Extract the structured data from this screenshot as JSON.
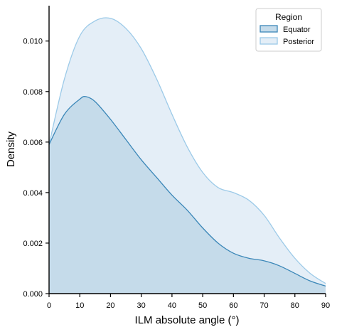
{
  "chart_data": {
    "type": "area",
    "xlabel": "ILM absolute angle (°)",
    "ylabel": "Density",
    "xlim": [
      0,
      90
    ],
    "ylim": [
      0,
      0.0114
    ],
    "x_ticks": [
      "0",
      "10",
      "20",
      "30",
      "40",
      "50",
      "60",
      "70",
      "80",
      "90"
    ],
    "y_ticks": [
      "0.000",
      "0.002",
      "0.004",
      "0.006",
      "0.008",
      "0.010"
    ],
    "grid": false,
    "legend_position": "top-right",
    "legend_title": "Region",
    "series": [
      {
        "name": "Posterior",
        "fill": "#e4eef7",
        "line": "#9ccae8",
        "x": [
          0,
          5,
          10,
          15,
          20,
          25,
          30,
          35,
          40,
          45,
          50,
          55,
          60,
          65,
          70,
          75,
          80,
          85,
          90
        ],
        "y": [
          0.0059,
          0.0085,
          0.0102,
          0.0108,
          0.0109,
          0.0105,
          0.0097,
          0.0085,
          0.0071,
          0.0058,
          0.0048,
          0.0042,
          0.004,
          0.0037,
          0.0031,
          0.0022,
          0.0014,
          0.0008,
          0.0004
        ]
      },
      {
        "name": "Equator",
        "fill": "#c5dbea",
        "line": "#3b87b8",
        "x": [
          0,
          5,
          10,
          12,
          15,
          20,
          25,
          30,
          35,
          40,
          45,
          50,
          55,
          60,
          65,
          70,
          75,
          80,
          85,
          90
        ],
        "y": [
          0.0059,
          0.0071,
          0.0077,
          0.0078,
          0.0076,
          0.0069,
          0.0061,
          0.0053,
          0.0046,
          0.0039,
          0.0033,
          0.0026,
          0.002,
          0.0016,
          0.0014,
          0.0013,
          0.0011,
          0.0008,
          0.0005,
          0.0003
        ]
      }
    ]
  }
}
